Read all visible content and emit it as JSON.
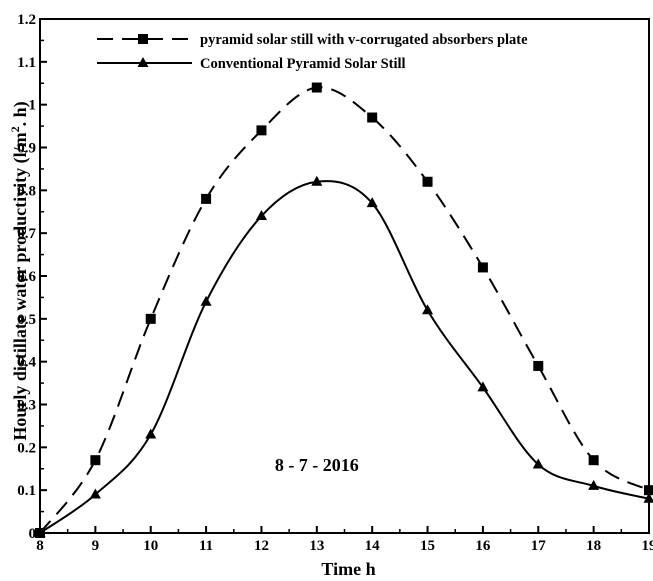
{
  "chart_data": {
    "type": "line",
    "xlabel": "Time h",
    "ylabel": "Hourly distillate water productivity (l/m2. h)",
    "ylabel_main": "Hourly distillate water productivity (l/m",
    "ylabel_sup": "2",
    "ylabel_tail": ". h)",
    "xlim": [
      8,
      19
    ],
    "ylim": [
      0,
      1.2
    ],
    "x_ticks": [
      "8",
      "9",
      "10",
      "11",
      "12",
      "13",
      "14",
      "15",
      "16",
      "17",
      "18",
      "19"
    ],
    "y_ticks": [
      "0",
      "0.1",
      "0.2",
      "0.3",
      "0.4",
      "0.5",
      "0.6",
      "0.7",
      "0.8",
      "0.9",
      "1",
      "1.1",
      "1.2"
    ],
    "annotation": "8 - 7 - 2016",
    "legend_position": "top-left",
    "grid": false,
    "series": [
      {
        "name": "pyramid solar still with v-corrugated absorbers plate",
        "marker": "square",
        "line_style": "dashed",
        "color": "#000000",
        "x": [
          8,
          9,
          10,
          11,
          12,
          13,
          14,
          15,
          16,
          17,
          18,
          19
        ],
        "values": [
          0.0,
          0.17,
          0.5,
          0.78,
          0.94,
          1.04,
          0.97,
          0.82,
          0.62,
          0.39,
          0.17,
          0.1
        ]
      },
      {
        "name": "Conventional Pyramid Solar Still",
        "marker": "triangle",
        "line_style": "solid",
        "color": "#000000",
        "x": [
          8,
          9,
          10,
          11,
          12,
          13,
          14,
          15,
          16,
          17,
          18,
          19
        ],
        "values": [
          0.0,
          0.09,
          0.23,
          0.54,
          0.74,
          0.82,
          0.77,
          0.52,
          0.34,
          0.16,
          0.11,
          0.08
        ]
      }
    ]
  }
}
